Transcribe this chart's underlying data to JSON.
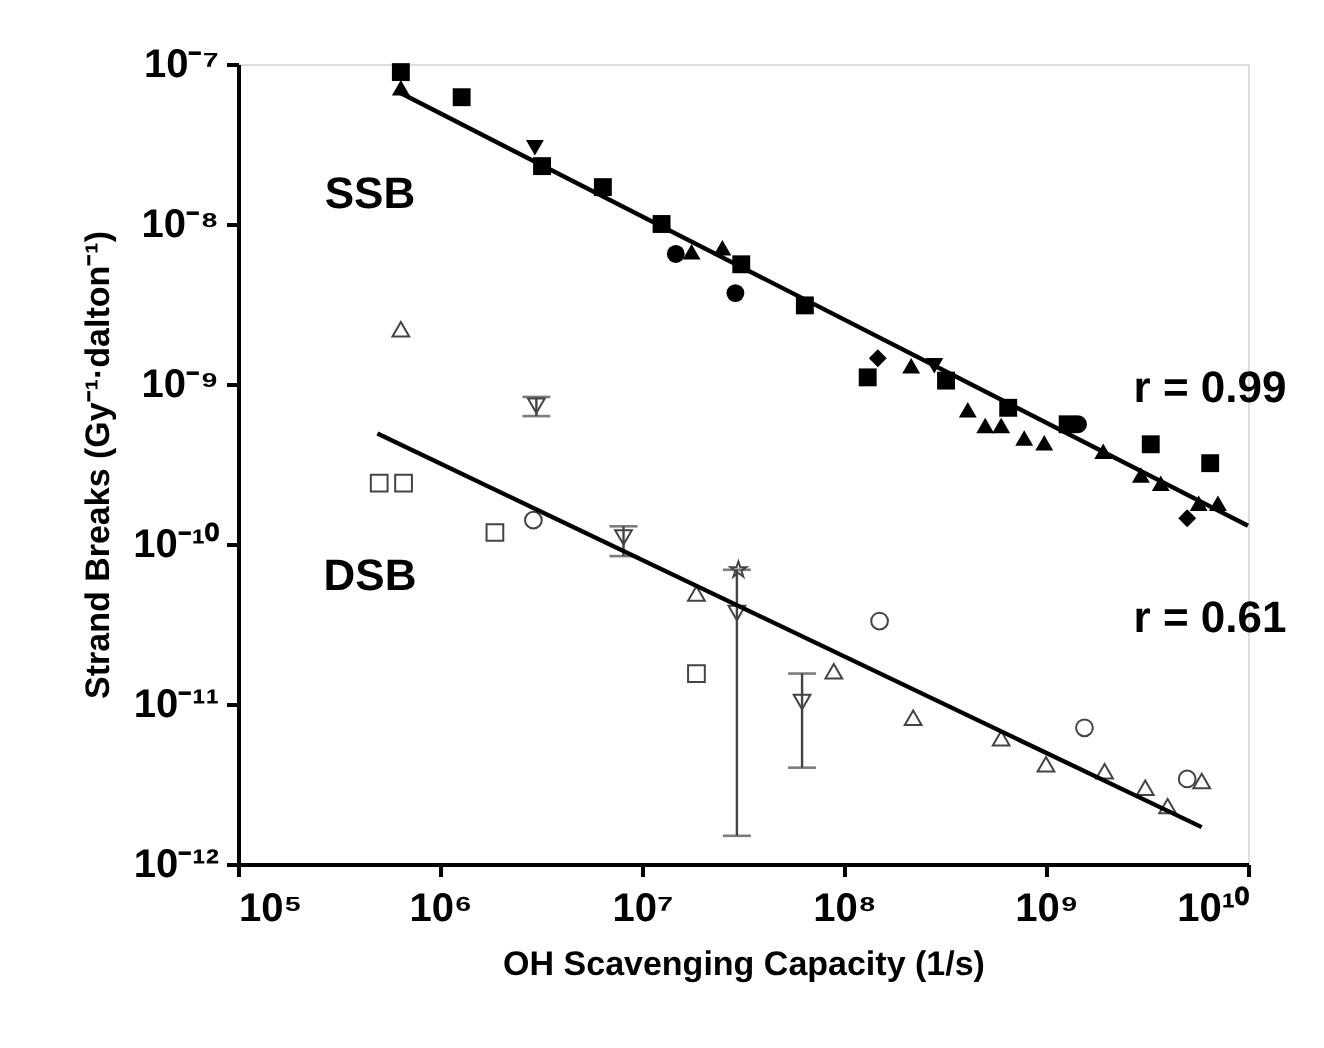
{
  "chart_data": {
    "type": "scatter",
    "xlabel": "OH Scavenging Capacity (1/s)",
    "ylabel": "Strand Breaks (Gy⁻¹·dalton⁻¹)",
    "log": "xy",
    "grid": false,
    "xlim": [
      100000.0,
      10000000000.0
    ],
    "ylim": [
      1e-12,
      1e-07
    ],
    "xticks": [
      {
        "value": 100000.0,
        "label": "10⁵"
      },
      {
        "value": 1000000.0,
        "label": "10⁶"
      },
      {
        "value": 10000000.0,
        "label": "10⁷"
      },
      {
        "value": 100000000.0,
        "label": "10⁸"
      },
      {
        "value": 1000000000.0,
        "label": "10⁹"
      },
      {
        "value": 10000000000.0,
        "label": "10¹⁰"
      }
    ],
    "yticks": [
      {
        "value": 1e-12,
        "label": "10⁻¹²"
      },
      {
        "value": 1e-11,
        "label": "10⁻¹¹"
      },
      {
        "value": 1e-10,
        "label": "10⁻¹⁰"
      },
      {
        "value": 1e-09,
        "label": "10⁻⁹"
      },
      {
        "value": 1e-08,
        "label": "10⁻⁸"
      },
      {
        "value": 1e-07,
        "label": "10⁻⁷"
      }
    ],
    "series": [
      {
        "type": "scatter",
        "marker": "square",
        "color": "#000000",
        "x": [
          640000.0,
          1280000.0,
          3200000.0,
          6400000.0,
          12500000.0,
          31000000.0,
          64000000.0,
          131000000.0,
          320000000.0,
          650000000.0,
          1280000000.0,
          3300000000.0,
          6500000000.0
        ],
        "values": [
          8.9e-08,
          6.2e-08,
          2.3e-08,
          1.7e-08,
          1e-08,
          5.6e-09,
          3.1e-09,
          1.1e-09,
          1.05e-09,
          7.1e-10,
          5.6e-10,
          4.2e-10,
          3.2e-10
        ]
      },
      {
        "type": "scatter",
        "marker": "triangle",
        "color": "#000000",
        "x": [
          640000.0,
          17600000.0,
          25000000.0,
          215000000.0,
          410000000.0,
          500000000.0,
          600000000.0,
          780000000.0,
          980000000.0,
          1920000000.0,
          2950000000.0,
          3700000000.0,
          5700000000.0,
          7100000000.0
        ],
        "values": [
          7.1e-08,
          6.7e-09,
          7.1e-09,
          1.3e-09,
          6.9e-10,
          5.5e-10,
          5.5e-10,
          4.6e-10,
          4.3e-10,
          3.8e-10,
          2.7e-10,
          2.4e-10,
          1.8e-10,
          1.8e-10
        ]
      },
      {
        "type": "scatter",
        "marker": "triangle-down",
        "color": "#000000",
        "x": [
          2950000.0,
          280000000.0
        ],
        "values": [
          3e-08,
          1.3e-09
        ]
      },
      {
        "type": "scatter",
        "marker": "circle",
        "color": "#000000",
        "x": [
          14700000.0,
          29000000.0,
          1440000000.0
        ],
        "values": [
          6.5e-09,
          3.7e-09,
          5.6e-10
        ]
      },
      {
        "type": "scatter",
        "marker": "diamond",
        "color": "#000000",
        "x": [
          147000000.0,
          5000000000.0
        ],
        "values": [
          1.45e-09,
          1.45e-10
        ]
      },
      {
        "type": "line",
        "line_style": "solid",
        "color": "#000000",
        "x": [
          620000.0,
          10000000000.0
        ],
        "values": [
          6.7e-08,
          1.3e-10
        ]
      },
      {
        "type": "scatter",
        "marker": "triangle",
        "color": "#444444",
        "x": [
          640000.0,
          18600000.0,
          89000000.0,
          220000000.0,
          600000000.0,
          1000000000.0,
          1950000000.0,
          3100000000.0,
          4000000000.0,
          5900000000.0
        ],
        "values": [
          2.2e-09,
          4.9e-11,
          1.6e-11,
          8.2e-12,
          6.1e-12,
          4.2e-12,
          3.8e-12,
          3e-12,
          2.3e-12,
          3.3e-12
        ]
      },
      {
        "type": "scatter",
        "marker": "triangle-down",
        "color": "#444444",
        "x": [
          3000000.0,
          8100000.0,
          29500000.0,
          62000000.0
        ],
        "values": [
          7.3e-10,
          1.1e-10,
          3.7e-11,
          1.03e-11
        ],
        "errors": [
          [
            6.3e-10,
            8.3e-10
          ],
          [
            8.4e-11,
            1.29e-10
          ],
          [
            1.5e-12,
            6.9e-11
          ],
          [
            4e-12,
            1.55e-11
          ]
        ]
      },
      {
        "type": "scatter",
        "marker": "square",
        "color": "#444444",
        "x": [
          500000.0,
          660000.0,
          1870000.0,
          18600000.0
        ],
        "values": [
          2.4e-10,
          2.4e-10,
          1.18e-10,
          1.55e-11
        ]
      },
      {
        "type": "scatter",
        "marker": "circle",
        "color": "#444444",
        "x": [
          2900000.0,
          150000000.0,
          1550000000.0,
          5000000000.0
        ],
        "values": [
          1.41e-10,
          3.3e-11,
          7.1e-12,
          3.4e-12
        ]
      },
      {
        "type": "scatter",
        "marker": "star",
        "color": "#444444",
        "x": [
          30000000.0
        ],
        "values": [
          6.9e-11
        ]
      },
      {
        "type": "line",
        "line_style": "solid",
        "color": "#000000",
        "x": [
          490000.0,
          5900000000.0
        ],
        "values": [
          4.9e-10,
          1.7e-12
        ]
      }
    ],
    "annotations": [
      "SSB",
      "DSB",
      "r = 0.99",
      "r = 0.61"
    ]
  }
}
